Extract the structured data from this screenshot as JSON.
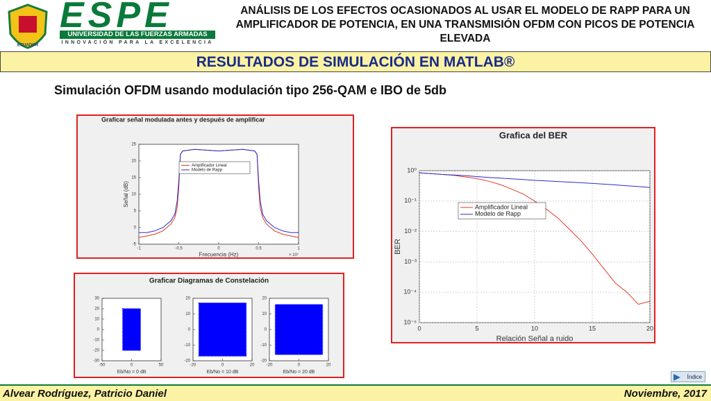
{
  "header": {
    "logo_text": "ESPE",
    "logo_subtitle": "UNIVERSIDAD DE LAS FUERZAS ARMADAS",
    "logo_motto": "INNOVACIÓN PARA LA EXCELENCIA",
    "shield_label": "ECUADOR",
    "title": "ANÁLISIS DE LOS EFECTOS OCASIONADOS AL USAR EL MODELO DE RAPP PARA UN AMPLIFICADOR DE POTENCIA, EN UNA TRANSMISIÓN OFDM CON PICOS DE POTENCIA ELEVADA"
  },
  "banner": "RESULTADOS DE SIMULACIÓN EN MATLAB®",
  "subtitle": "Simulación OFDM usando modulación tipo 256-QAM e IBO de 5db",
  "chart_data": [
    {
      "type": "line",
      "title": "Graficar señal modulada antes y después de amplificar",
      "xlabel": "Frecuencia (Hz)",
      "ylabel": "Señal (dB)",
      "x_multiplier": "× 10⁷",
      "x": [
        -1,
        -0.9,
        -0.8,
        -0.7,
        -0.6,
        -0.55,
        -0.52,
        -0.5,
        -0.48,
        -0.45,
        -0.3,
        0,
        0.3,
        0.45,
        0.48,
        0.5,
        0.52,
        0.55,
        0.6,
        0.7,
        0.8,
        0.9,
        1
      ],
      "xlim": [
        -1,
        1
      ],
      "xticks": [
        -1,
        -0.5,
        0,
        0.5,
        1
      ],
      "ylim": [
        -5,
        25
      ],
      "yticks": [
        -5,
        0,
        5,
        10,
        15,
        20,
        25
      ],
      "grid": false,
      "legend": "top-left",
      "series": [
        {
          "name": "Amplificador Lineal",
          "color": "#d9341f",
          "values": [
            -3,
            -2.5,
            -2,
            -1,
            1,
            3,
            6,
            12,
            22,
            23,
            23.5,
            23,
            23.5,
            23,
            22,
            12,
            6,
            3,
            1,
            -1,
            -2,
            -2.5,
            -3
          ]
        },
        {
          "name": "Modelo de Rapp",
          "color": "#2b2bc8",
          "values": [
            -1.5,
            -1.5,
            -1,
            0,
            2,
            4,
            8,
            14,
            22,
            23,
            23.5,
            23,
            23.5,
            23,
            22,
            14,
            8,
            4,
            2,
            0,
            -1,
            -1.5,
            -1.5
          ]
        }
      ]
    },
    {
      "type": "constellation",
      "title": "Graficar Diagramas de Constelación",
      "color": "#0000ff",
      "panels": [
        {
          "xlabel": "Eb/No = 0 dB",
          "xlim": [
            -50,
            50
          ],
          "xticks": [
            -50,
            0,
            50
          ],
          "ylim": [
            -30,
            30
          ],
          "yticks": [
            -30,
            -20,
            -10,
            0,
            10,
            20,
            30
          ],
          "extent": [
            -15,
            15,
            -20,
            20
          ]
        },
        {
          "xlabel": "Eb/No = 10 dB",
          "xlim": [
            -20,
            20
          ],
          "xticks": [
            -20,
            0,
            20
          ],
          "ylim": [
            -20,
            20
          ],
          "yticks": [
            -20,
            -10,
            0,
            10,
            20
          ],
          "extent": [
            -16,
            16,
            -17,
            17
          ]
        },
        {
          "xlabel": "Eb/No = 20 dB",
          "xlim": [
            -20,
            20
          ],
          "xticks": [
            -20,
            0,
            20
          ],
          "ylim": [
            -20,
            20
          ],
          "yticks": [
            -20,
            -10,
            0,
            10,
            20
          ],
          "extent": [
            -16,
            16,
            -16,
            16
          ]
        }
      ]
    },
    {
      "type": "line",
      "title": "Grafica del BER",
      "xlabel": "Relación Señal a ruido",
      "ylabel": "BER",
      "log_y": true,
      "grid": true,
      "legend": "top-left",
      "x": [
        0,
        1,
        2,
        3,
        4,
        5,
        6,
        7,
        8,
        9,
        10,
        11,
        12,
        13,
        14,
        15,
        16,
        17,
        18,
        19,
        20
      ],
      "xlim": [
        0,
        20
      ],
      "xticks": [
        0,
        5,
        10,
        15,
        20
      ],
      "ylim": [
        1e-05,
        1
      ],
      "yticks": [
        {
          "value": 1e-05,
          "label": "10⁻⁵"
        },
        {
          "value": 0.0001,
          "label": "10⁻⁴"
        },
        {
          "value": 0.001,
          "label": "10⁻³"
        },
        {
          "value": 0.01,
          "label": "10⁻²"
        },
        {
          "value": 0.1,
          "label": "10⁻¹"
        },
        {
          "value": 1,
          "label": "10⁰"
        }
      ],
      "series": [
        {
          "name": "Amplificador Lineal",
          "color": "#e03a2a",
          "values": [
            0.85,
            0.8,
            0.75,
            0.7,
            0.62,
            0.55,
            0.45,
            0.35,
            0.25,
            0.17,
            0.1,
            0.055,
            0.028,
            0.012,
            0.005,
            0.0018,
            0.0006,
            0.0002,
            0.0001,
            4e-05,
            5e-05
          ]
        },
        {
          "name": "Modelo de Rapp",
          "color": "#2b2bc8",
          "values": [
            0.85,
            0.8,
            0.75,
            0.72,
            0.68,
            0.64,
            0.6,
            0.57,
            0.54,
            0.51,
            0.48,
            0.46,
            0.44,
            0.42,
            0.4,
            0.38,
            0.36,
            0.34,
            0.32,
            0.3,
            0.28
          ]
        }
      ]
    }
  ],
  "footer": {
    "author": "Alvear Rodríguez, Patricio Daniel",
    "date": "Noviembre, 2017",
    "index_button": "Índice"
  }
}
